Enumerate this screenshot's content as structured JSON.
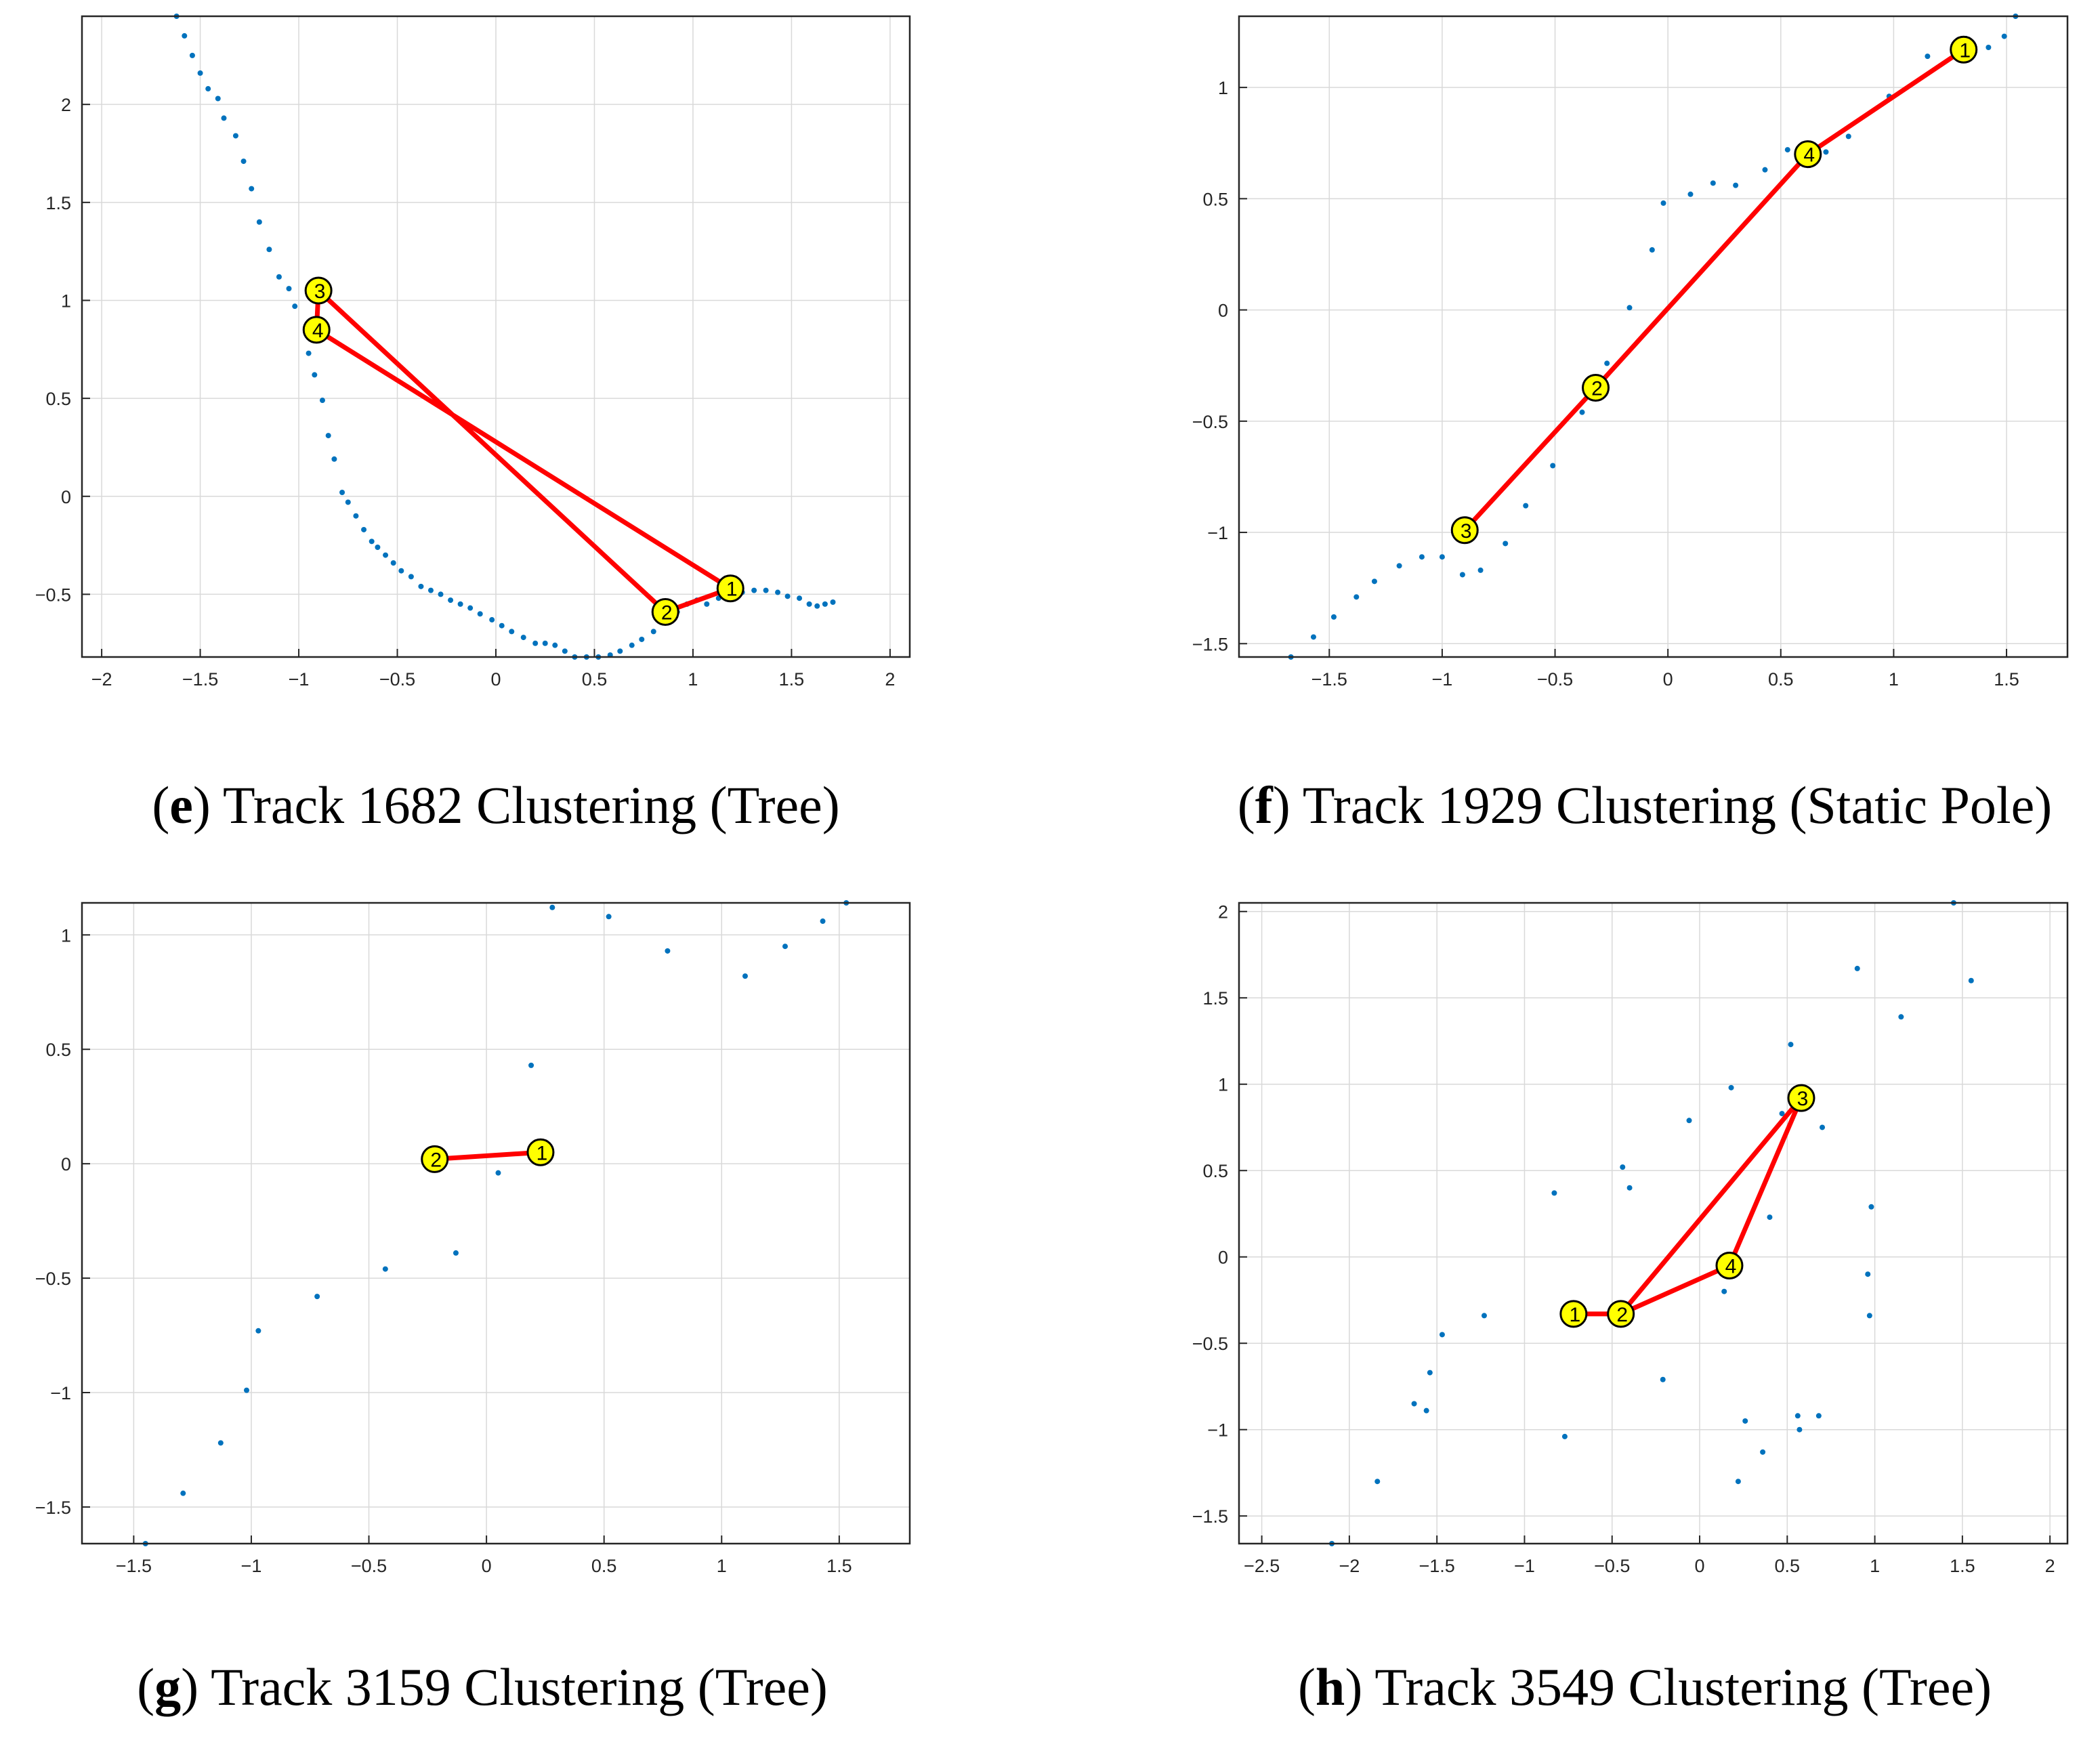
{
  "colors": {
    "points": "#0072BD",
    "path": "#FF0000",
    "marker": "#FFFF00",
    "grid": "#D9D9D9",
    "axis": "#262626"
  },
  "chart_data": [
    {
      "type": "scatter",
      "id": "e",
      "caption_letter": "e",
      "caption_text": " Track 1682 Clustering (Tree)",
      "xlim": [
        -2.1,
        2.1
      ],
      "ylim": [
        -0.82,
        2.45
      ],
      "xticks": [
        -2,
        -1.5,
        -1,
        -0.5,
        0,
        0.5,
        1,
        1.5,
        2
      ],
      "xtick_labels": [
        "−2",
        "−1.5",
        "−1",
        "−0.5",
        "0",
        "0.5",
        "1",
        "1.5",
        "2"
      ],
      "yticks": [
        -0.5,
        0,
        0.5,
        1,
        1.5,
        2
      ],
      "ytick_labels": [
        "−0.5",
        "0",
        "0.5",
        "1",
        "1.5",
        "2"
      ],
      "grid": true,
      "points": [
        [
          -1.62,
          2.45
        ],
        [
          -1.58,
          2.35
        ],
        [
          -1.54,
          2.25
        ],
        [
          -1.5,
          2.16
        ],
        [
          -1.46,
          2.08
        ],
        [
          -1.41,
          2.03
        ],
        [
          -1.38,
          1.93
        ],
        [
          -1.32,
          1.84
        ],
        [
          -1.28,
          1.71
        ],
        [
          -1.24,
          1.57
        ],
        [
          -1.2,
          1.4
        ],
        [
          -1.15,
          1.26
        ],
        [
          -1.1,
          1.12
        ],
        [
          -1.05,
          1.06
        ],
        [
          -1.02,
          0.97
        ],
        [
          -0.96,
          0.84
        ],
        [
          -0.95,
          0.73
        ],
        [
          -0.92,
          0.62
        ],
        [
          -0.88,
          0.49
        ],
        [
          -0.85,
          0.31
        ],
        [
          -0.82,
          0.19
        ],
        [
          -0.78,
          0.02
        ],
        [
          -0.75,
          -0.03
        ],
        [
          -0.71,
          -0.1
        ],
        [
          -0.67,
          -0.17
        ],
        [
          -0.63,
          -0.23
        ],
        [
          -0.6,
          -0.26
        ],
        [
          -0.56,
          -0.3
        ],
        [
          -0.52,
          -0.34
        ],
        [
          -0.48,
          -0.38
        ],
        [
          -0.43,
          -0.41
        ],
        [
          -0.38,
          -0.46
        ],
        [
          -0.33,
          -0.48
        ],
        [
          -0.28,
          -0.5
        ],
        [
          -0.23,
          -0.53
        ],
        [
          -0.18,
          -0.55
        ],
        [
          -0.13,
          -0.57
        ],
        [
          -0.08,
          -0.6
        ],
        [
          -0.02,
          -0.63
        ],
        [
          0.03,
          -0.66
        ],
        [
          0.08,
          -0.69
        ],
        [
          0.14,
          -0.72
        ],
        [
          0.2,
          -0.75
        ],
        [
          0.25,
          -0.75
        ],
        [
          0.3,
          -0.76
        ],
        [
          0.35,
          -0.79
        ],
        [
          0.4,
          -0.82
        ],
        [
          0.46,
          -0.82
        ],
        [
          0.52,
          -0.82
        ],
        [
          0.58,
          -0.81
        ],
        [
          0.63,
          -0.79
        ],
        [
          0.69,
          -0.76
        ],
        [
          0.74,
          -0.73
        ],
        [
          0.8,
          -0.69
        ],
        [
          0.86,
          -0.64
        ],
        [
          0.92,
          -0.59
        ],
        [
          0.97,
          -0.55
        ],
        [
          1.02,
          -0.53
        ],
        [
          1.07,
          -0.55
        ],
        [
          1.13,
          -0.52
        ],
        [
          1.19,
          -0.51
        ],
        [
          1.25,
          -0.49
        ],
        [
          1.31,
          -0.48
        ],
        [
          1.37,
          -0.48
        ],
        [
          1.43,
          -0.49
        ],
        [
          1.48,
          -0.51
        ],
        [
          1.54,
          -0.52
        ],
        [
          1.59,
          -0.55
        ],
        [
          1.63,
          -0.56
        ],
        [
          1.67,
          -0.55
        ],
        [
          1.71,
          -0.54
        ]
      ],
      "clusters": [
        {
          "label": "1",
          "x": 1.19,
          "y": -0.47
        },
        {
          "label": "2",
          "x": 0.86,
          "y": -0.59
        },
        {
          "label": "3",
          "x": -0.9,
          "y": 1.05
        },
        {
          "label": "4",
          "x": -0.91,
          "y": 0.85
        }
      ],
      "path_order": [
        "1",
        "2",
        "3",
        "4",
        "1"
      ]
    },
    {
      "type": "scatter",
      "id": "f",
      "caption_letter": "f",
      "caption_text": " Track 1929 Clustering (Static Pole)",
      "xlim": [
        -1.9,
        1.77
      ],
      "ylim": [
        -1.56,
        1.32
      ],
      "xticks": [
        -1.5,
        -1,
        -0.5,
        0,
        0.5,
        1,
        1.5
      ],
      "xtick_labels": [
        "−1.5",
        "−1",
        "−0.5",
        "0",
        "0.5",
        "1",
        "1.5"
      ],
      "yticks": [
        -1.5,
        -1,
        -0.5,
        0,
        0.5,
        1
      ],
      "ytick_labels": [
        "−1.5",
        "−1",
        "−0.5",
        "0",
        "0.5",
        "1"
      ],
      "grid": true,
      "points": [
        [
          -1.67,
          -1.56
        ],
        [
          -1.57,
          -1.47
        ],
        [
          -1.48,
          -1.38
        ],
        [
          -1.38,
          -1.29
        ],
        [
          -1.3,
          -1.22
        ],
        [
          -1.19,
          -1.15
        ],
        [
          -1.09,
          -1.11
        ],
        [
          -1.0,
          -1.11
        ],
        [
          -0.91,
          -1.19
        ],
        [
          -0.83,
          -1.17
        ],
        [
          -0.72,
          -1.05
        ],
        [
          -0.63,
          -0.88
        ],
        [
          -0.51,
          -0.7
        ],
        [
          -0.38,
          -0.46
        ],
        [
          -0.27,
          -0.24
        ],
        [
          -0.17,
          0.01
        ],
        [
          -0.07,
          0.27
        ],
        [
          -0.02,
          0.48
        ],
        [
          0.1,
          0.52
        ],
        [
          0.2,
          0.57
        ],
        [
          0.3,
          0.56
        ],
        [
          0.43,
          0.63
        ],
        [
          0.53,
          0.72
        ],
        [
          0.7,
          0.71
        ],
        [
          0.8,
          0.78
        ],
        [
          0.98,
          0.96
        ],
        [
          1.15,
          1.14
        ],
        [
          1.32,
          1.22
        ],
        [
          1.42,
          1.18
        ],
        [
          1.49,
          1.23
        ],
        [
          1.54,
          1.32
        ]
      ],
      "clusters": [
        {
          "label": "1",
          "x": 1.31,
          "y": 1.17
        },
        {
          "label": "2",
          "x": -0.32,
          "y": -0.35
        },
        {
          "label": "3",
          "x": -0.9,
          "y": -0.99
        },
        {
          "label": "4",
          "x": 0.62,
          "y": 0.7
        }
      ],
      "path_order": [
        "1",
        "4",
        "2",
        "3"
      ]
    },
    {
      "type": "scatter",
      "id": "g",
      "caption_letter": "g",
      "caption_text": " Track 3159 Clustering (Tree)",
      "xlim": [
        -1.72,
        1.8
      ],
      "ylim": [
        -1.66,
        1.14
      ],
      "xticks": [
        -1.5,
        -1,
        -0.5,
        0,
        0.5,
        1,
        1.5
      ],
      "xtick_labels": [
        "−1.5",
        "−1",
        "−0.5",
        "0",
        "0.5",
        "1",
        "1.5"
      ],
      "yticks": [
        -1.5,
        -1,
        -0.5,
        0,
        0.5,
        1
      ],
      "ytick_labels": [
        "−1.5",
        "−1",
        "−0.5",
        "0",
        "0.5",
        "1"
      ],
      "grid": true,
      "points": [
        [
          -1.45,
          -1.66
        ],
        [
          -1.29,
          -1.44
        ],
        [
          -1.13,
          -1.22
        ],
        [
          -1.02,
          -0.99
        ],
        [
          -0.97,
          -0.73
        ],
        [
          -0.72,
          -0.58
        ],
        [
          -0.43,
          -0.46
        ],
        [
          -0.13,
          -0.39
        ],
        [
          0.05,
          -0.04
        ],
        [
          0.19,
          0.43
        ],
        [
          0.28,
          1.12
        ],
        [
          0.52,
          1.08
        ],
        [
          0.77,
          0.93
        ],
        [
          1.1,
          0.82
        ],
        [
          1.27,
          0.95
        ],
        [
          1.43,
          1.06
        ],
        [
          1.53,
          1.14
        ]
      ],
      "clusters": [
        {
          "label": "1",
          "x": 0.23,
          "y": 0.05
        },
        {
          "label": "2",
          "x": -0.22,
          "y": 0.02
        }
      ],
      "path_order": [
        "1",
        "2"
      ]
    },
    {
      "type": "scatter",
      "id": "h",
      "caption_letter": "h",
      "caption_text": " Track 3549 Clustering (Tree)",
      "xlim": [
        -2.63,
        2.1
      ],
      "ylim": [
        -1.66,
        2.05
      ],
      "xticks": [
        -2.5,
        -2,
        -1.5,
        -1,
        -0.5,
        0,
        0.5,
        1,
        1.5,
        2
      ],
      "xtick_labels": [
        "−2.5",
        "−2",
        "−1.5",
        "−1",
        "−0.5",
        "0",
        "0.5",
        "1",
        "1.5",
        "2"
      ],
      "yticks": [
        -1.5,
        -1,
        -0.5,
        0,
        0.5,
        1,
        1.5,
        2
      ],
      "ytick_labels": [
        "−1.5",
        "−1",
        "−0.5",
        "0",
        "0.5",
        "1",
        "1.5",
        "2"
      ],
      "grid": true,
      "points": [
        [
          -2.1,
          -1.66
        ],
        [
          -1.84,
          -1.3
        ],
        [
          -1.63,
          -0.85
        ],
        [
          -1.56,
          -0.89
        ],
        [
          -1.54,
          -0.67
        ],
        [
          -1.47,
          -0.45
        ],
        [
          -1.23,
          -0.34
        ],
        [
          -0.83,
          0.37
        ],
        [
          -0.77,
          -1.04
        ],
        [
          -0.44,
          0.52
        ],
        [
          -0.4,
          0.4
        ],
        [
          -0.21,
          -0.71
        ],
        [
          -0.06,
          0.79
        ],
        [
          0.14,
          -0.2
        ],
        [
          0.18,
          0.98
        ],
        [
          0.22,
          -1.3
        ],
        [
          0.26,
          -0.95
        ],
        [
          0.36,
          -1.13
        ],
        [
          0.4,
          0.23
        ],
        [
          0.47,
          0.83
        ],
        [
          0.52,
          1.23
        ],
        [
          0.56,
          -0.92
        ],
        [
          0.57,
          -1.0
        ],
        [
          0.68,
          -0.92
        ],
        [
          0.7,
          0.75
        ],
        [
          0.9,
          1.67
        ],
        [
          0.96,
          -0.1
        ],
        [
          0.97,
          -0.34
        ],
        [
          0.98,
          0.29
        ],
        [
          1.15,
          1.39
        ],
        [
          1.45,
          2.05
        ],
        [
          1.55,
          1.6
        ]
      ],
      "clusters": [
        {
          "label": "1",
          "x": -0.72,
          "y": -0.33
        },
        {
          "label": "2",
          "x": -0.45,
          "y": -0.33
        },
        {
          "label": "3",
          "x": 0.58,
          "y": 0.92
        },
        {
          "label": "4",
          "x": 0.17,
          "y": -0.05
        }
      ],
      "path_order": [
        "1",
        "2",
        "4",
        "3",
        "2"
      ]
    }
  ]
}
